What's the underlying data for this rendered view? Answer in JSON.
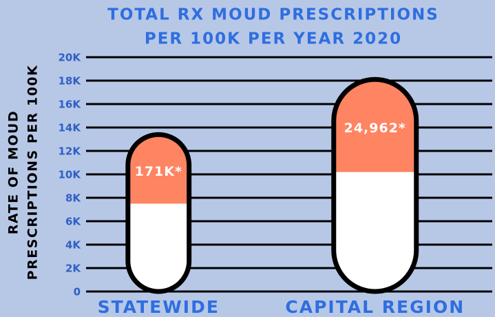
{
  "chart_data": {
    "type": "pill",
    "title": [
      "TOTAL RX MOUD PRESCRIPTIONS",
      "PER 100K PER YEAR 2020"
    ],
    "y_label": [
      "RATE OF MOUD",
      "PRESCRIPTIONS PER 100K"
    ],
    "categories": [
      "STATEWIDE",
      "CAPITAL REGION"
    ],
    "series": [
      {
        "color": "#ffffff",
        "values": [
          7500,
          10200
        ]
      },
      {
        "color": "#fe8462",
        "values": [
          5900,
          7900
        ]
      }
    ],
    "annotations": [
      "171K*",
      "24,962*"
    ],
    "ylim": [
      0,
      20000
    ],
    "yticks": [
      0,
      {
        "value": 2000,
        "label": "2K"
      },
      {
        "value": 4000,
        "label": "4K"
      },
      {
        "value": 6000,
        "label": "6K"
      },
      {
        "value": 8000,
        "label": "8K"
      },
      {
        "value": 10000,
        "label": "10K"
      },
      {
        "value": 12000,
        "label": "12K"
      },
      {
        "value": 14000,
        "label": "14K"
      },
      {
        "value": 16000,
        "label": "16K"
      },
      {
        "value": 18000,
        "label": "18K"
      },
      {
        "value": 20000,
        "label": "20K"
      }
    ],
    "grid": true
  }
}
